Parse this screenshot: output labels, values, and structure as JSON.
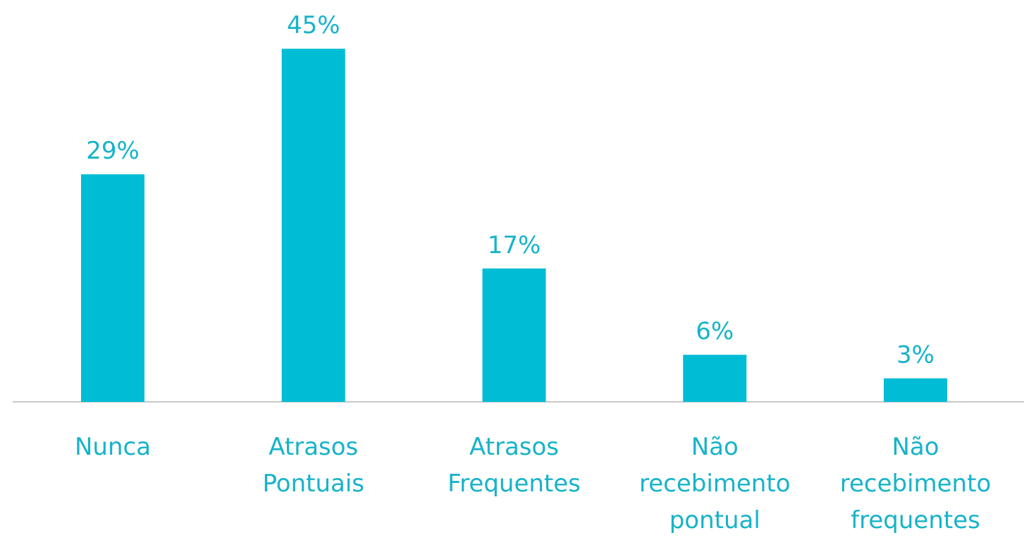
{
  "chart_data": {
    "type": "bar",
    "categories": [
      "Nunca",
      "Atrasos Pontuais",
      "Atrasos Frequentes",
      "Não recebimento pontual",
      "Não recebimento frequentes"
    ],
    "values": [
      29,
      45,
      17,
      6,
      3
    ],
    "value_labels": [
      "29%",
      "45%",
      "17%",
      "6%",
      "3%"
    ],
    "color": "#00bcd4"
  }
}
